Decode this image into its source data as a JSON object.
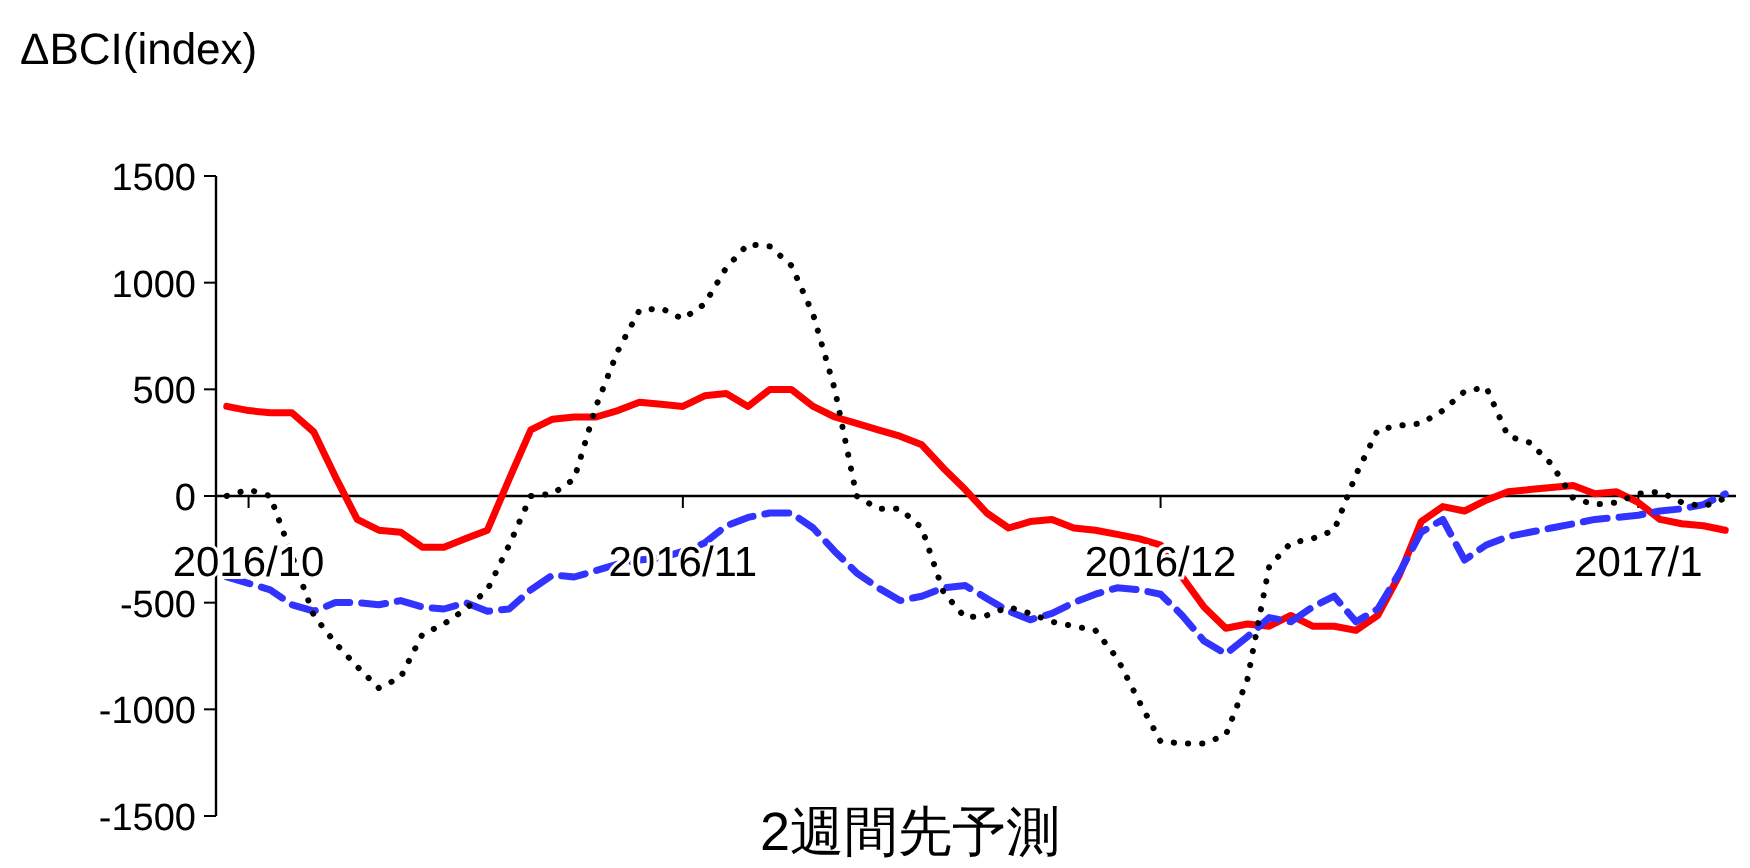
{
  "chart_data": {
    "type": "line",
    "title": "2週間先予測",
    "ylabel": "ΔBCI(index)",
    "categories": [
      null,
      "2016/10",
      null,
      null,
      null,
      null,
      null,
      null,
      null,
      null,
      null,
      null,
      null,
      null,
      null,
      null,
      null,
      null,
      null,
      null,
      null,
      "2016/11",
      null,
      null,
      null,
      null,
      null,
      null,
      null,
      null,
      null,
      null,
      null,
      null,
      null,
      null,
      null,
      null,
      null,
      null,
      null,
      null,
      null,
      "2016/12",
      null,
      null,
      null,
      null,
      null,
      null,
      null,
      null,
      null,
      null,
      null,
      null,
      null,
      null,
      null,
      null,
      null,
      null,
      null,
      null,
      null,
      "2017/1",
      null,
      null,
      null,
      null
    ],
    "ylim": [
      -1500,
      1500
    ],
    "yticks": [
      -1500,
      -1000,
      -500,
      0,
      500,
      1000,
      1500
    ],
    "grid": false,
    "series": [
      {
        "color": "#ff0000",
        "line_style": "solid",
        "values": [
          420,
          400,
          390,
          390,
          300,
          90,
          -110,
          -160,
          -170,
          -240,
          -240,
          -200,
          -160,
          80,
          310,
          360,
          370,
          370,
          400,
          440,
          430,
          420,
          470,
          480,
          420,
          500,
          500,
          420,
          370,
          340,
          310,
          280,
          240,
          130,
          30,
          -80,
          -150,
          -120,
          -110,
          -150,
          -160,
          -180,
          -200,
          -230,
          -380,
          -520,
          -620,
          -600,
          -610,
          -560,
          -610,
          -610,
          -630,
          -560,
          -370,
          -120,
          -50,
          -70,
          -20,
          20,
          30,
          40,
          50,
          10,
          20,
          -30,
          -110,
          -130,
          -140,
          -160
        ]
      },
      {
        "color": "#3333ff",
        "line_style": "dashed",
        "values": [
          -380,
          -410,
          -440,
          -510,
          -540,
          -500,
          -500,
          -510,
          -490,
          -520,
          -530,
          -500,
          -540,
          -530,
          -440,
          -370,
          -380,
          -350,
          -320,
          -300,
          -290,
          -260,
          -220,
          -140,
          -100,
          -80,
          -80,
          -150,
          -260,
          -360,
          -430,
          -490,
          -470,
          -430,
          -420,
          -480,
          -540,
          -580,
          -550,
          -500,
          -460,
          -430,
          -440,
          -460,
          -560,
          -680,
          -740,
          -660,
          -570,
          -590,
          -520,
          -470,
          -590,
          -530,
          -360,
          -170,
          -110,
          -300,
          -230,
          -190,
          -170,
          -150,
          -130,
          -110,
          -100,
          -90,
          -70,
          -60,
          -40,
          10
        ]
      },
      {
        "color": "#000000",
        "line_style": "dotted",
        "values": [
          0,
          30,
          0,
          -280,
          -560,
          -690,
          -800,
          -900,
          -850,
          -650,
          -600,
          -530,
          -440,
          -230,
          0,
          10,
          80,
          420,
          680,
          870,
          880,
          830,
          900,
          1070,
          1180,
          1170,
          1080,
          850,
          500,
          0,
          -60,
          -60,
          -150,
          -450,
          -570,
          -560,
          -520,
          -550,
          -590,
          -610,
          -630,
          -760,
          -960,
          -1150,
          -1160,
          -1160,
          -1120,
          -860,
          -330,
          -220,
          -200,
          -160,
          100,
          310,
          330,
          340,
          400,
          490,
          510,
          280,
          250,
          150,
          -10,
          -40,
          -30,
          10,
          20,
          -30,
          -50,
          -10
        ]
      }
    ]
  }
}
